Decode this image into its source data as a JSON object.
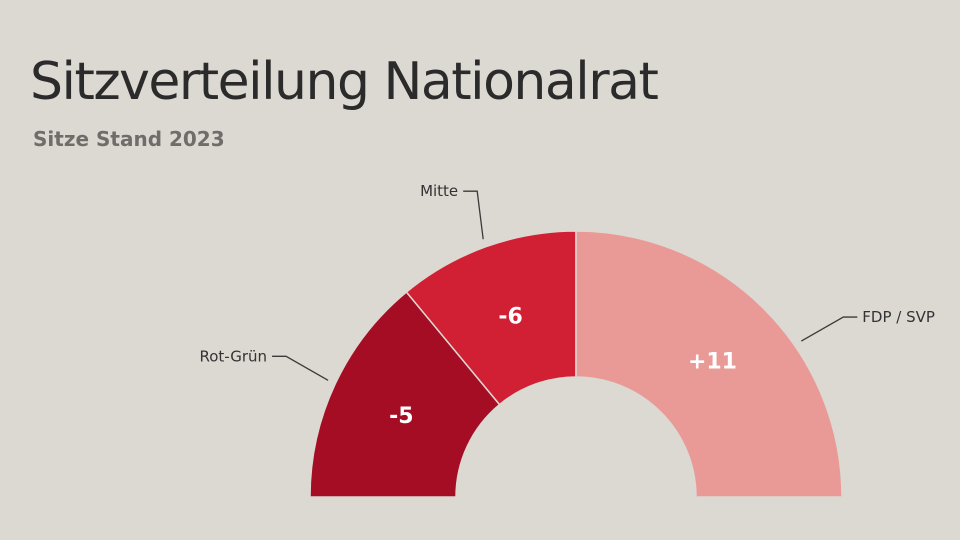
{
  "chart_data": {
    "type": "pie",
    "title": "Sitzverteilung Nationalrat",
    "subtitle": "Sitze Stand 2023",
    "categories": [
      "Rot-Grün",
      "Mitte",
      "FDP / SVP"
    ],
    "seat_shares": [
      56,
      44,
      100
    ],
    "value_labels": [
      "-5",
      "-6",
      "+11"
    ],
    "colors": [
      "#a50d25",
      "#d11f33",
      "#ea9a96"
    ],
    "half_donut": true
  }
}
